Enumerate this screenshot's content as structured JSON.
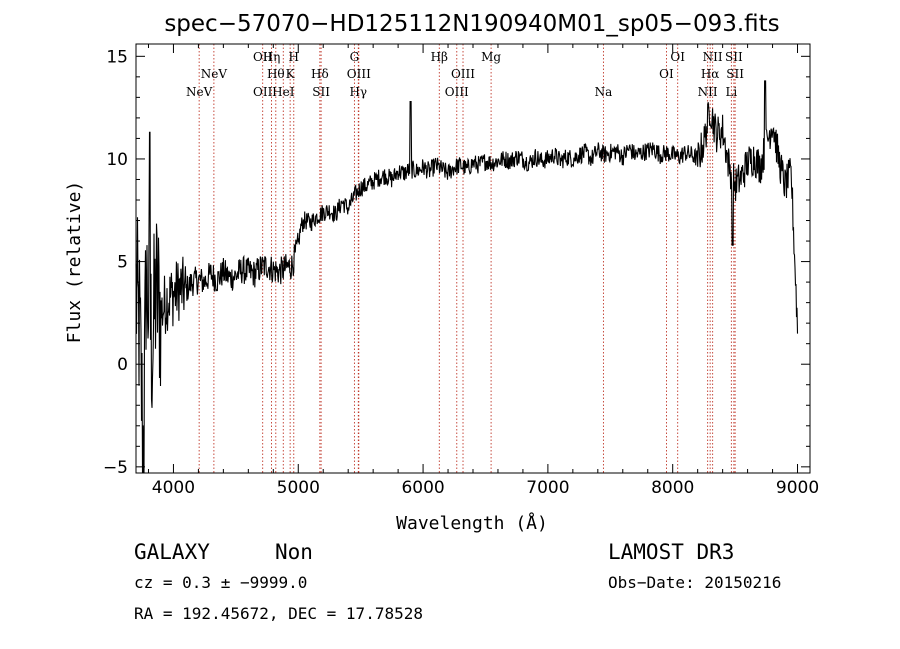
{
  "chart_data": {
    "type": "line",
    "title": "spec−57070−HD125112N190940M01_sp05−093.fits",
    "xlabel": "Wavelength (Å)",
    "ylabel": "Flux (relative)",
    "xlim": [
      3700,
      9100
    ],
    "ylim": [
      -5.3,
      15.6
    ],
    "x_ticks": [
      4000,
      5000,
      6000,
      7000,
      8000,
      9000
    ],
    "y_ticks": [
      -5,
      0,
      5,
      10,
      15
    ],
    "x_tick_labels": [
      "4000",
      "5000",
      "6000",
      "7000",
      "8000",
      "9000"
    ],
    "y_tick_labels": [
      "−5",
      "0",
      "5",
      "10",
      "15"
    ],
    "series": [
      {
        "name": "spectrum",
        "x": [
          3700,
          3730,
          3760,
          3780,
          3800,
          3830,
          3860,
          3900,
          3950,
          4000,
          4050,
          4100,
          4150,
          4200,
          4250,
          4300,
          4350,
          4400,
          4450,
          4500,
          4550,
          4600,
          4650,
          4700,
          4750,
          4800,
          4850,
          4900,
          4950,
          5000,
          5020,
          5050,
          5100,
          5150,
          5200,
          5250,
          5300,
          5350,
          5400,
          5450,
          5500,
          5550,
          5600,
          5650,
          5700,
          5750,
          5800,
          5850,
          5900,
          5950,
          6000,
          6050,
          6100,
          6150,
          6200,
          6250,
          6300,
          6350,
          6400,
          6450,
          6500,
          6550,
          6600,
          6650,
          6700,
          6750,
          6800,
          6850,
          6900,
          6950,
          7000,
          7050,
          7100,
          7150,
          7200,
          7250,
          7300,
          7350,
          7400,
          7450,
          7500,
          7550,
          7600,
          7650,
          7700,
          7750,
          7800,
          7850,
          7900,
          7950,
          8000,
          8050,
          8100,
          8150,
          8200,
          8250,
          8300,
          8350,
          8400,
          8450,
          8500,
          8550,
          8600,
          8650,
          8700,
          8750,
          8800,
          8850,
          8900,
          8950,
          9000
        ],
        "y": [
          3.5,
          1.5,
          -4.5,
          4.2,
          3.0,
          0.8,
          3.6,
          2.5,
          3.2,
          3.4,
          3.7,
          3.6,
          4.0,
          4.1,
          4.0,
          4.4,
          4.1,
          4.5,
          4.2,
          4.3,
          4.6,
          4.5,
          4.4,
          4.7,
          4.8,
          4.6,
          4.5,
          4.7,
          4.8,
          5.8,
          6.7,
          7.0,
          6.9,
          7.2,
          7.4,
          7.5,
          7.3,
          7.9,
          7.6,
          8.2,
          8.6,
          8.7,
          8.9,
          9.1,
          9.2,
          9.0,
          9.4,
          9.3,
          9.5,
          9.4,
          9.6,
          9.4,
          9.7,
          9.5,
          9.3,
          9.6,
          9.7,
          9.5,
          9.8,
          9.7,
          9.9,
          9.8,
          9.9,
          10.0,
          9.9,
          10.1,
          10.0,
          9.8,
          10.1,
          9.9,
          10.0,
          10.2,
          9.9,
          10.1,
          10.0,
          10.2,
          10.3,
          10.0,
          10.4,
          10.2,
          10.3,
          10.4,
          10.1,
          10.5,
          10.2,
          10.3,
          10.4,
          10.5,
          10.2,
          10.3,
          10.2,
          10.1,
          10.3,
          10.2,
          10.0,
          10.8,
          12.5,
          11.2,
          11.4,
          9.7,
          8.7,
          9.1,
          9.8,
          10.1,
          9.6,
          10.7,
          11.8,
          10.0,
          8.7,
          9.3,
          1.8
        ]
      }
    ],
    "spectral_lines": [
      {
        "name": "NeV",
        "x": 4206,
        "tier": 2
      },
      {
        "name": "NeV",
        "x": 4324,
        "tier": 1
      },
      {
        "name": "OII",
        "x": 4715,
        "tier": 0
      },
      {
        "name": "OII",
        "x": 4715,
        "tier": 2
      },
      {
        "name": "Hη",
        "x": 4786,
        "tier": 0
      },
      {
        "name": "Hθ",
        "x": 4820,
        "tier": 1
      },
      {
        "name": "HeI",
        "x": 4880,
        "tier": 2
      },
      {
        "name": "H",
        "x": 4964,
        "tier": 0
      },
      {
        "name": "K",
        "x": 4935,
        "tier": 1
      },
      {
        "name": "Hδ",
        "x": 5173,
        "tier": 1
      },
      {
        "name": "SII",
        "x": 5183,
        "tier": 2
      },
      {
        "name": "G",
        "x": 5450,
        "tier": 0
      },
      {
        "name": "OIII",
        "x": 5485,
        "tier": 1
      },
      {
        "name": "Hγ",
        "x": 5481,
        "tier": 2
      },
      {
        "name": "Hβ",
        "x": 6130,
        "tier": 0
      },
      {
        "name": "OIII",
        "x": 6320,
        "tier": 1
      },
      {
        "name": "OIII",
        "x": 6270,
        "tier": 2
      },
      {
        "name": "Mg",
        "x": 6545,
        "tier": 0
      },
      {
        "name": "Na",
        "x": 7445,
        "tier": 2
      },
      {
        "name": "OI",
        "x": 8040,
        "tier": 0
      },
      {
        "name": "OI",
        "x": 7950,
        "tier": 1
      },
      {
        "name": "NII",
        "x": 8320,
        "tier": 0
      },
      {
        "name": "Hα",
        "x": 8300,
        "tier": 1
      },
      {
        "name": "NII",
        "x": 8280,
        "tier": 2
      },
      {
        "name": "SII",
        "x": 8490,
        "tier": 0
      },
      {
        "name": "SII",
        "x": 8500,
        "tier": 1
      },
      {
        "name": "Li",
        "x": 8470,
        "tier": 2
      }
    ]
  },
  "info": {
    "object_class": "GALAXY",
    "subclass": "Non",
    "cz": "cz = 0.3 ± −9999.0",
    "coords": "RA = 192.45672, DEC =  17.78528",
    "survey": "LAMOST DR3",
    "obs_date": "Obs−Date: 20150216"
  },
  "colors": {
    "line_marker": "#c0392b",
    "spectrum": "#000000"
  }
}
